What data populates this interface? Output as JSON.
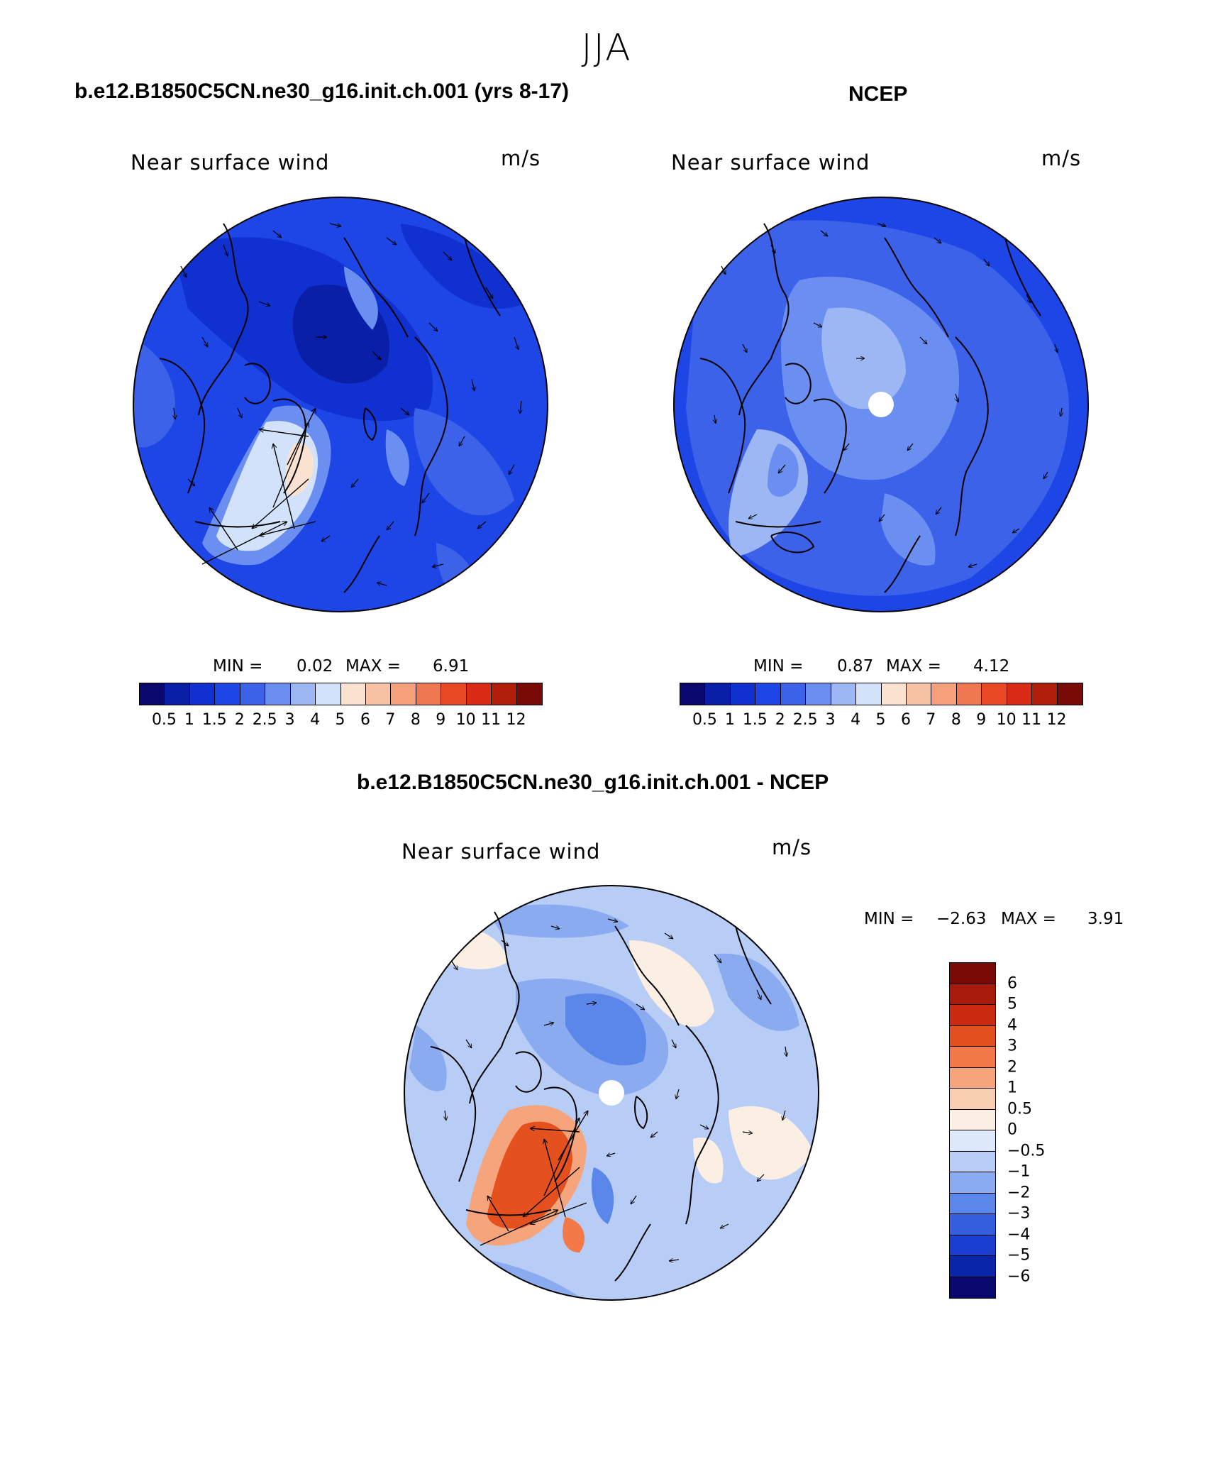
{
  "figure": {
    "season": "JJA",
    "colors": {
      "seq": [
        "#08086e",
        "#0a1fa8",
        "#1030d0",
        "#1e46e6",
        "#3c62ea",
        "#6b8ff0",
        "#9db7f5",
        "#d2e2fa",
        "#fbe2d0",
        "#f8c3a4",
        "#f5a07a",
        "#f07850",
        "#e94a25",
        "#d82a14",
        "#b01e0a",
        "#7a0a05"
      ],
      "diff": [
        "#7a0a05",
        "#a81a0a",
        "#c92a10",
        "#e5501f",
        "#f37a48",
        "#f5a47c",
        "#f8cfb0",
        "#fbeee2",
        "#dde9fa",
        "#b8cdf5",
        "#8aabf0",
        "#5b86ea",
        "#3460e0",
        "#1a3ed0",
        "#0a26a8",
        "#08086e"
      ]
    },
    "panels": [
      {
        "id": "model",
        "title": "b.e12.B1850C5CN.ne30_g16.init.ch.001 (yrs 8-17)",
        "left_label": "Near surface wind",
        "right_label": "m/s",
        "min_label": "MIN =",
        "min": "0.02",
        "max_label": "MAX =",
        "max": "6.91",
        "levels": [
          "0.5",
          "1",
          "1.5",
          "2",
          "2.5",
          "3",
          "4",
          "5",
          "6",
          "7",
          "8",
          "9",
          "10",
          "11",
          "12"
        ]
      },
      {
        "id": "obs",
        "title": "NCEP",
        "left_label": "Near surface wind",
        "right_label": "m/s",
        "min_label": "MIN =",
        "min": "0.87",
        "max_label": "MAX =",
        "max": "4.12",
        "levels": [
          "0.5",
          "1",
          "1.5",
          "2",
          "2.5",
          "3",
          "4",
          "5",
          "6",
          "7",
          "8",
          "9",
          "10",
          "11",
          "12"
        ]
      },
      {
        "id": "diff",
        "title": "b.e12.B1850C5CN.ne30_g16.init.ch.001 - NCEP",
        "left_label": "Near surface wind",
        "right_label": "m/s",
        "min_label": "MIN =",
        "min": "−2.63",
        "max_label": "MAX =",
        "max": "3.91",
        "levels": [
          "6",
          "5",
          "4",
          "3",
          "2",
          "1",
          "0.5",
          "0",
          "−0.5",
          "−1",
          "−2",
          "−3",
          "−4",
          "−5",
          "−6"
        ]
      }
    ]
  }
}
